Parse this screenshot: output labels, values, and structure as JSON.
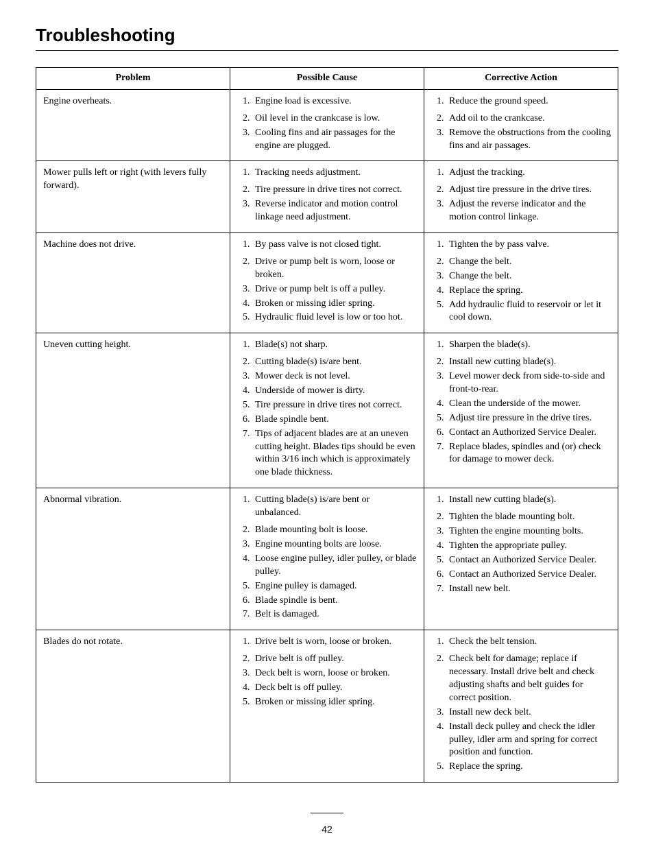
{
  "page": {
    "title": "Troubleshooting",
    "number": "42"
  },
  "table": {
    "headers": {
      "problem": "Problem",
      "cause": "Possible Cause",
      "action": "Corrective Action"
    },
    "rows": [
      {
        "problem": "Engine overheats.",
        "causes": [
          "Engine load is excessive.",
          "Oil level in the crankcase is low.",
          "Cooling fins and air passages for the engine are plugged."
        ],
        "actions": [
          "Reduce the ground speed.",
          "Add oil to the crankcase.",
          "Remove the obstructions from the cooling fins and air passages."
        ]
      },
      {
        "problem": "Mower pulls left or right (with levers fully forward).",
        "causes": [
          "Tracking needs adjustment.",
          "Tire pressure in drive tires not correct.",
          "Reverse indicator and motion control linkage need adjustment."
        ],
        "actions": [
          "Adjust the tracking.",
          "Adjust tire pressure in the drive tires.",
          "Adjust the reverse indicator and the motion control linkage."
        ]
      },
      {
        "problem": "Machine does not drive.",
        "causes": [
          "By pass valve is not closed tight.",
          "Drive or pump belt is worn, loose or broken.",
          "Drive or pump belt is off a pulley.",
          "Broken or missing idler spring.",
          "Hydraulic fluid level is low or too hot."
        ],
        "actions": [
          "Tighten the by pass valve.",
          "Change the belt.",
          "Change the belt.",
          "Replace the spring.",
          "Add hydraulic fluid to reservoir or let it cool down."
        ]
      },
      {
        "problem": "Uneven cutting height.",
        "causes": [
          "Blade(s) not sharp.",
          "Cutting blade(s) is/are bent.",
          "Mower deck is not level.",
          "Underside of mower is dirty.",
          "Tire pressure in drive tires not correct.",
          "Blade spindle bent.",
          "Tips of adjacent blades are at an uneven cutting height. Blades tips should be even within 3/16 inch which is approximately one blade thickness."
        ],
        "actions": [
          "Sharpen the blade(s).",
          "Install new cutting blade(s).",
          "Level mower deck from side-to-side and front-to-rear.",
          "Clean the underside of the mower.",
          "Adjust tire pressure in the drive tires.",
          "Contact an Authorized Service Dealer.",
          "Replace blades, spindles and (or) check for damage to mower deck."
        ]
      },
      {
        "problem": "Abnormal vibration.",
        "causes": [
          "Cutting blade(s) is/are bent or unbalanced.",
          "Blade mounting bolt is loose.",
          "Engine mounting bolts are loose.",
          "Loose engine pulley, idler pulley, or blade pulley.",
          "Engine pulley is damaged.",
          "Blade spindle is bent.",
          "Belt is damaged."
        ],
        "actions": [
          "Install new cutting blade(s).",
          "Tighten the blade mounting bolt.",
          "Tighten the engine mounting bolts.",
          "Tighten the appropriate pulley.",
          "Contact an Authorized Service Dealer.",
          "Contact an Authorized Service Dealer.",
          "Install new belt."
        ]
      },
      {
        "problem": "Blades do not rotate.",
        "causes": [
          "Drive belt is worn, loose or broken.",
          "Drive belt is off pulley.",
          "Deck belt is worn, loose or broken.",
          "Deck belt is off pulley.",
          "Broken or missing idler spring."
        ],
        "actions": [
          "Check the belt tension.",
          "Check belt for damage; replace if necessary. Install drive belt and check adjusting shafts and belt guides for correct position.",
          "Install new deck belt.",
          "Install deck pulley and check the idler pulley, idler arm and spring for correct position and function.",
          "Replace the spring."
        ]
      }
    ]
  }
}
